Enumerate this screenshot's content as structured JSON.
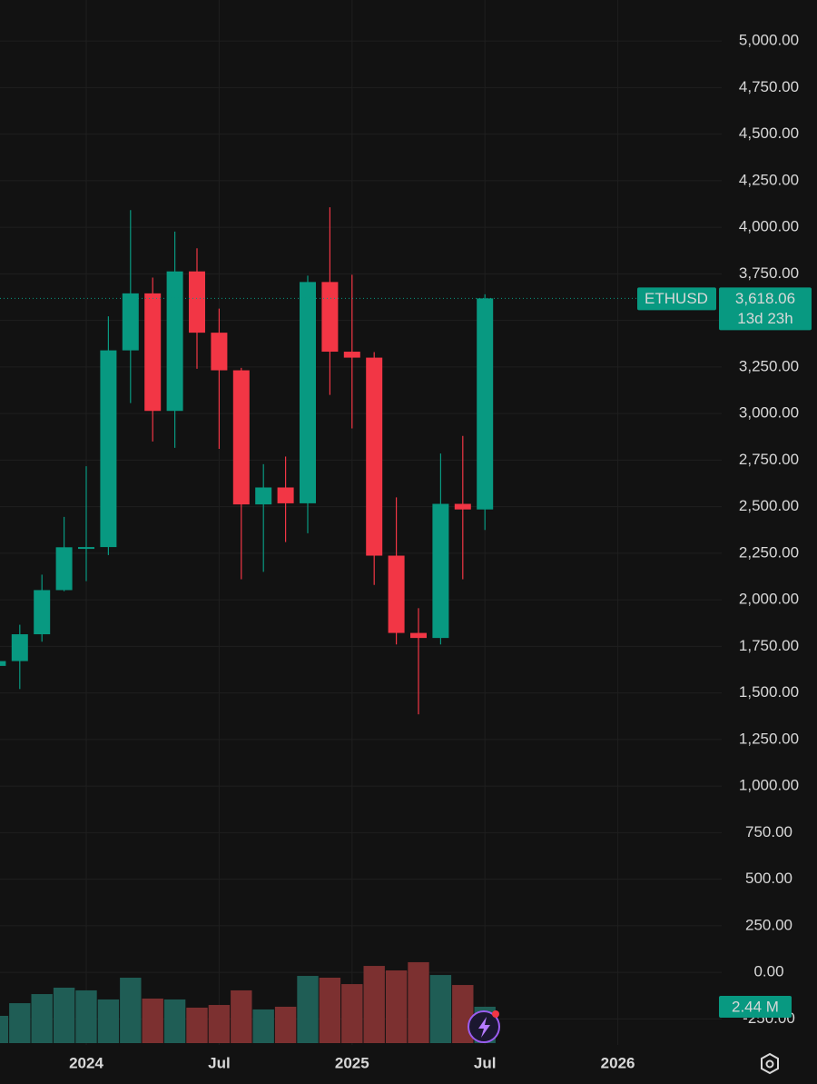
{
  "chart_data": {
    "type": "candlestick",
    "symbol": "ETHUSD",
    "countdown": "13d 23h",
    "up_color": "#089981",
    "down_color": "#f23645",
    "categories": [
      null,
      null,
      null,
      null,
      "2024",
      null,
      null,
      null,
      null,
      null,
      "Jul",
      null,
      null,
      null,
      null,
      null,
      "2025",
      null,
      null,
      null,
      null,
      null,
      "Jul",
      null,
      null,
      null,
      null,
      null,
      "2026"
    ],
    "open": [
      1645,
      1671,
      1815,
      2052,
      2282,
      2283,
      3339,
      3645,
      3014,
      3763,
      3434,
      3232,
      2512,
      2603,
      2518,
      3706,
      3332,
      3300,
      2237,
      1822,
      1795,
      2515,
      2485,
      null,
      null,
      null,
      null,
      null,
      null
    ],
    "high": [
      1690,
      1866,
      2135,
      2445,
      2717,
      3522,
      4092,
      3730,
      3977,
      3887,
      3563,
      3245,
      2728,
      2769,
      3740,
      4107,
      3745,
      3330,
      2550,
      1955,
      2785,
      2880,
      3640,
      null,
      null,
      null,
      null,
      null,
      null
    ],
    "low": [
      1520,
      1521,
      1775,
      2046,
      2100,
      2240,
      3056,
      2850,
      2816,
      3240,
      2810,
      2110,
      2150,
      2310,
      2357,
      3100,
      2920,
      2080,
      1760,
      1385,
      1760,
      2110,
      2375,
      null,
      null,
      null,
      null,
      null,
      null
    ],
    "close": [
      1671,
      1815,
      2052,
      2282,
      2283,
      3339,
      3645,
      3014,
      3763,
      3434,
      3232,
      2512,
      2603,
      2518,
      3706,
      3332,
      3300,
      2237,
      1822,
      1795,
      2515,
      2485,
      3618.06,
      null,
      null,
      null,
      null,
      null,
      null
    ],
    "last_price": {
      "value": 3618.06,
      "label": "3,618.06"
    },
    "volume": {
      "values": [
        1.83,
        2.68,
        3.29,
        3.72,
        3.54,
        2.93,
        4.39,
        2.99,
        2.93,
        2.38,
        2.56,
        3.54,
        2.26,
        2.44,
        4.51,
        4.39,
        3.96,
        5.18,
        4.88,
        5.43,
        4.57,
        3.9,
        2.44,
        null,
        null,
        null,
        null,
        null,
        null
      ],
      "value_labels": [
        null,
        null,
        null,
        null,
        null,
        null,
        null,
        null,
        null,
        null,
        null,
        null,
        null,
        null,
        null,
        null,
        null,
        null,
        null,
        null,
        null,
        null,
        "2.44 M",
        null,
        null,
        null,
        null,
        null,
        null
      ],
      "up_color": "#1f5d55",
      "down_color": "#7c3030"
    },
    "ylim": [
      -380,
      5220
    ],
    "yticks": [
      {
        "value": -250,
        "label": "-250.00"
      },
      {
        "value": 0,
        "label": "0.00"
      },
      {
        "value": 250,
        "label": "250.00"
      },
      {
        "value": 500,
        "label": "500.00"
      },
      {
        "value": 750,
        "label": "750.00"
      },
      {
        "value": 1000,
        "label": "1,000.00"
      },
      {
        "value": 1250,
        "label": "1,250.00"
      },
      {
        "value": 1500,
        "label": "1,500.00"
      },
      {
        "value": 1750,
        "label": "1,750.00"
      },
      {
        "value": 2000,
        "label": "2,000.00"
      },
      {
        "value": 2250,
        "label": "2,250.00"
      },
      {
        "value": 2500,
        "label": "2,500.00"
      },
      {
        "value": 2750,
        "label": "2,750.00"
      },
      {
        "value": 3000,
        "label": "3,000.00"
      },
      {
        "value": 3250,
        "label": "3,250.00"
      },
      {
        "value": 3500,
        "label": "3,500.00"
      },
      {
        "value": 3750,
        "label": "3,750.00"
      },
      {
        "value": 4000,
        "label": "4,000.00"
      },
      {
        "value": 4250,
        "label": "4,250.00"
      },
      {
        "value": 4500,
        "label": "4,500.00"
      },
      {
        "value": 4750,
        "label": "4,750.00"
      },
      {
        "value": 5000,
        "label": "5,000.00"
      }
    ],
    "grid": true
  }
}
